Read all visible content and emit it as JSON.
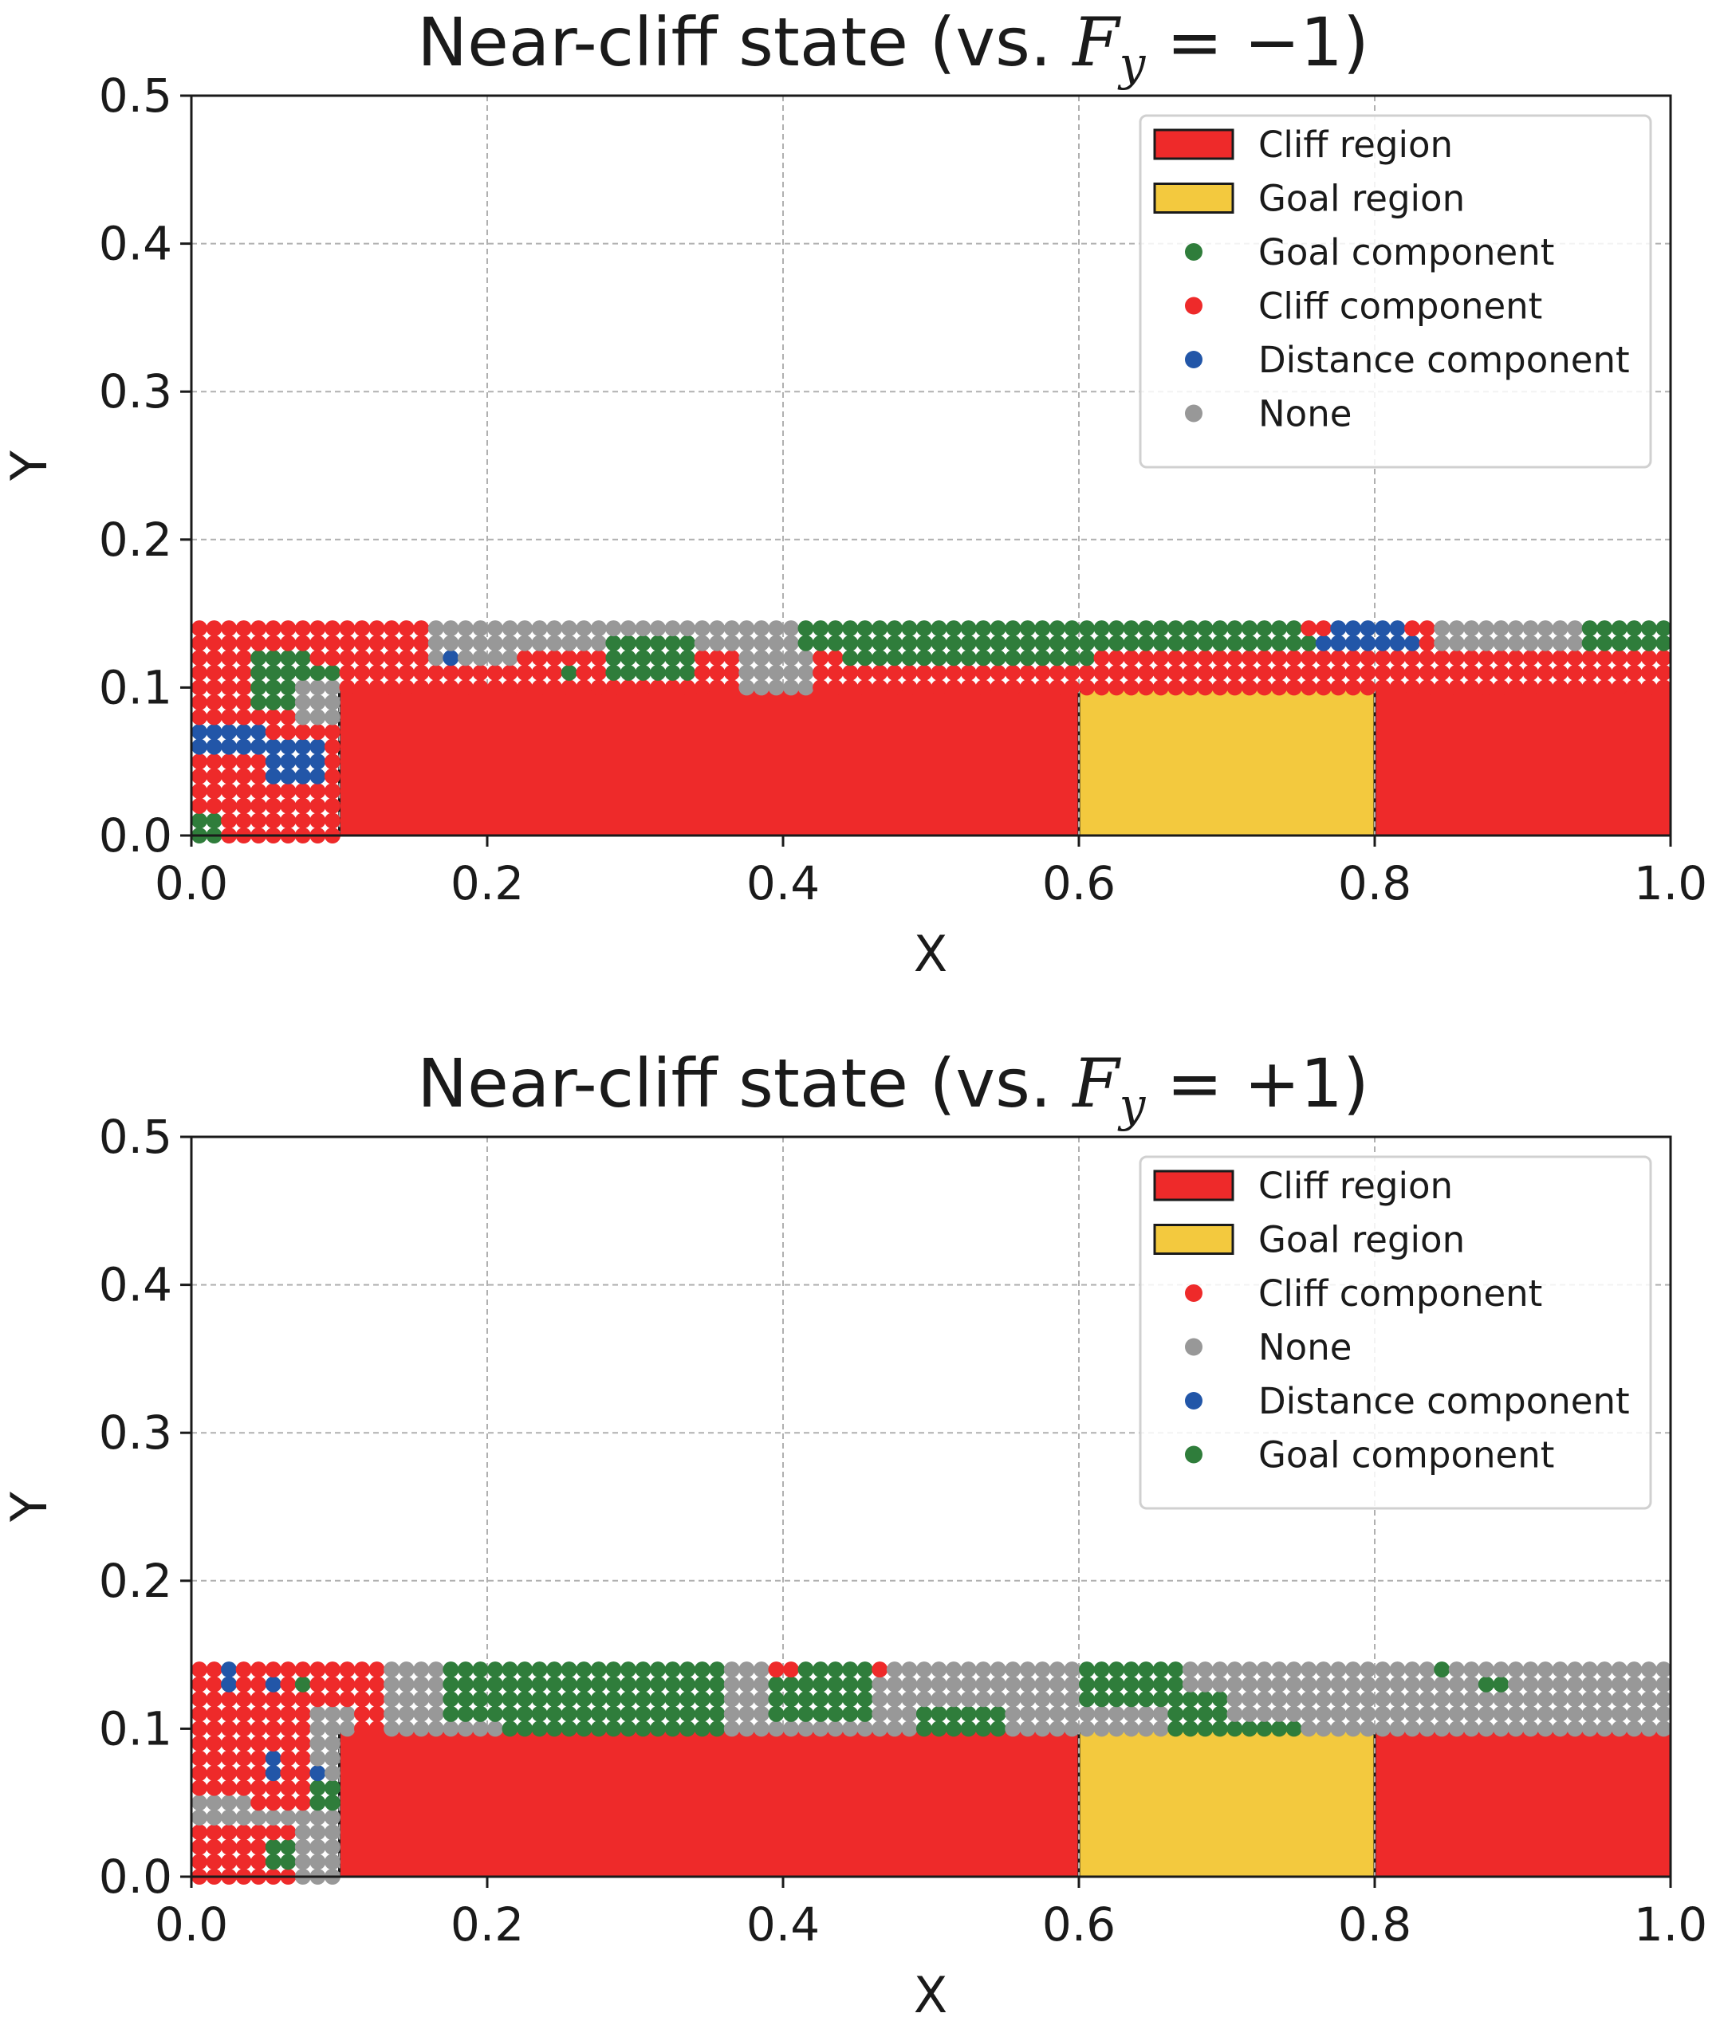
{
  "colors": {
    "cliff_region": "#ee2a2a",
    "goal_region": "#f3c93e",
    "goal_component": "#2f7d3b",
    "cliff_component": "#ee2a2a",
    "distance_component": "#2256a8",
    "none": "#989898"
  },
  "chart_data": [
    {
      "type": "scatter",
      "title": "Near-cliff state (vs. ",
      "title_math": "F",
      "title_math_sub": "y",
      "title_math_rest": " = −1)",
      "title_close": ")",
      "xlabel": "X",
      "ylabel": "Y",
      "xlim": [
        0.0,
        1.0
      ],
      "ylim": [
        0.0,
        0.5
      ],
      "xticks": [
        "0.0",
        "0.2",
        "0.4",
        "0.6",
        "0.8",
        "1.0"
      ],
      "yticks": [
        "0.0",
        "0.1",
        "0.2",
        "0.3",
        "0.4",
        "0.5"
      ],
      "grid": true,
      "legend_position": "top-right",
      "regions": [
        {
          "name": "Cliff region",
          "x": [
            0.1,
            0.6
          ],
          "y": [
            0.0,
            0.1
          ],
          "color_key": "cliff_region"
        },
        {
          "name": "Goal region",
          "x": [
            0.6,
            0.8
          ],
          "y": [
            0.0,
            0.1
          ],
          "color_key": "goal_region"
        },
        {
          "name": "Cliff region",
          "x": [
            0.8,
            1.0
          ],
          "y": [
            0.0,
            0.1
          ],
          "color_key": "cliff_region"
        }
      ],
      "legend": [
        {
          "label": "Cliff region",
          "kind": "patch",
          "color_key": "cliff_region"
        },
        {
          "label": "Goal region",
          "kind": "patch",
          "color_key": "goal_region"
        },
        {
          "label": "Goal component",
          "kind": "dot",
          "color_key": "goal_component"
        },
        {
          "label": "Cliff component",
          "kind": "dot",
          "color_key": "cliff_component"
        },
        {
          "label": "Distance component",
          "kind": "dot",
          "color_key": "distance_component"
        },
        {
          "label": "None",
          "kind": "dot",
          "color_key": "none"
        }
      ],
      "grid_points": {
        "step": 0.01,
        "x_range": [
          0.0,
          0.99
        ],
        "y_top_band": [
          0.1,
          0.14
        ],
        "left_column_x": [
          0.0,
          0.09
        ],
        "left_column_y": [
          0.0,
          0.09
        ],
        "default_top": "cliff_component",
        "default_left": "cliff_component",
        "runs": [
          {
            "cat": "none",
            "x": [
              0.16,
              0.41
            ],
            "y": [
              0.13,
              0.14
            ]
          },
          {
            "cat": "none",
            "x": [
              0.37,
              0.41
            ],
            "y": [
              0.1,
              0.12
            ]
          },
          {
            "cat": "none",
            "x": [
              0.16,
              0.21
            ],
            "y": [
              0.12,
              0.12
            ]
          },
          {
            "cat": "goal_component",
            "x": [
              0.41,
              0.75
            ],
            "y": [
              0.13,
              0.14
            ]
          },
          {
            "cat": "goal_component",
            "x": [
              0.44,
              0.6
            ],
            "y": [
              0.12,
              0.12
            ]
          },
          {
            "cat": "goal_component",
            "x": [
              0.28,
              0.33
            ],
            "y": [
              0.11,
              0.13
            ]
          },
          {
            "cat": "distance_component",
            "x": [
              0.76,
              0.81
            ],
            "y": [
              0.13,
              0.14
            ]
          },
          {
            "cat": "cliff_component",
            "x": [
              0.75,
              0.76
            ],
            "y": [
              0.14,
              0.14
            ]
          },
          {
            "cat": "cliff_component",
            "x": [
              0.82,
              0.84
            ],
            "y": [
              0.14,
              0.14
            ]
          },
          {
            "cat": "none",
            "x": [
              0.84,
              0.93
            ],
            "y": [
              0.13,
              0.14
            ]
          },
          {
            "cat": "goal_component",
            "x": [
              0.94,
              0.99
            ],
            "y": [
              0.13,
              0.14
            ]
          },
          {
            "cat": "distance_component",
            "x": [
              0.17,
              0.17
            ],
            "y": [
              0.12,
              0.12
            ]
          },
          {
            "cat": "goal_component",
            "x": [
              0.25,
              0.25
            ],
            "y": [
              0.11,
              0.11
            ]
          },
          {
            "cat": "distance_component",
            "x": [
              0.82,
              0.82
            ],
            "y": [
              0.13,
              0.13
            ]
          },
          {
            "cat": "goal_component",
            "x": [
              0.04,
              0.07
            ],
            "y": [
              0.09,
              0.12
            ]
          },
          {
            "cat": "goal_component",
            "x": [
              0.08,
              0.09
            ],
            "y": [
              0.1,
              0.11
            ]
          },
          {
            "cat": "none",
            "x": [
              0.07,
              0.09
            ],
            "y": [
              0.08,
              0.1
            ]
          },
          {
            "cat": "distance_component",
            "x": [
              0.0,
              0.04
            ],
            "y": [
              0.06,
              0.07
            ]
          },
          {
            "cat": "distance_component",
            "x": [
              0.05,
              0.08
            ],
            "y": [
              0.04,
              0.06
            ]
          },
          {
            "cat": "goal_component",
            "x": [
              0.0,
              0.01
            ],
            "y": [
              0.0,
              0.01
            ]
          }
        ]
      }
    },
    {
      "type": "scatter",
      "title": "Near-cliff state (vs. ",
      "title_math": "F",
      "title_math_sub": "y",
      "title_math_rest": " = +1)",
      "title_close": ")",
      "xlabel": "X",
      "ylabel": "Y",
      "xlim": [
        0.0,
        1.0
      ],
      "ylim": [
        0.0,
        0.5
      ],
      "xticks": [
        "0.0",
        "0.2",
        "0.4",
        "0.6",
        "0.8",
        "1.0"
      ],
      "yticks": [
        "0.0",
        "0.1",
        "0.2",
        "0.3",
        "0.4",
        "0.5"
      ],
      "grid": true,
      "legend_position": "top-right",
      "regions": [
        {
          "name": "Cliff region",
          "x": [
            0.1,
            0.6
          ],
          "y": [
            0.0,
            0.1
          ],
          "color_key": "cliff_region"
        },
        {
          "name": "Goal region",
          "x": [
            0.6,
            0.8
          ],
          "y": [
            0.0,
            0.1
          ],
          "color_key": "goal_region"
        },
        {
          "name": "Cliff region",
          "x": [
            0.8,
            1.0
          ],
          "y": [
            0.0,
            0.1
          ],
          "color_key": "cliff_region"
        }
      ],
      "legend": [
        {
          "label": "Cliff region",
          "kind": "patch",
          "color_key": "cliff_region"
        },
        {
          "label": "Goal region",
          "kind": "patch",
          "color_key": "goal_region"
        },
        {
          "label": "Cliff component",
          "kind": "dot",
          "color_key": "cliff_component"
        },
        {
          "label": "None",
          "kind": "dot",
          "color_key": "none"
        },
        {
          "label": "Distance component",
          "kind": "dot",
          "color_key": "distance_component"
        },
        {
          "label": "Goal component",
          "kind": "dot",
          "color_key": "goal_component"
        }
      ],
      "grid_points": {
        "step": 0.01,
        "x_range": [
          0.0,
          0.99
        ],
        "y_top_band": [
          0.1,
          0.14
        ],
        "left_column_x": [
          0.0,
          0.09
        ],
        "left_column_y": [
          0.0,
          0.09
        ],
        "default_top": "none",
        "default_left": "none",
        "runs": [
          {
            "cat": "cliff_component",
            "x": [
              0.0,
              0.12
            ],
            "y": [
              0.1,
              0.14
            ]
          },
          {
            "cat": "none",
            "x": [
              0.08,
              0.1
            ],
            "y": [
              0.1,
              0.11
            ]
          },
          {
            "cat": "distance_component",
            "x": [
              0.02,
              0.02
            ],
            "y": [
              0.13,
              0.14
            ]
          },
          {
            "cat": "distance_component",
            "x": [
              0.05,
              0.05
            ],
            "y": [
              0.13,
              0.13
            ]
          },
          {
            "cat": "goal_component",
            "x": [
              0.07,
              0.07
            ],
            "y": [
              0.13,
              0.13
            ]
          },
          {
            "cat": "goal_component",
            "x": [
              0.17,
              0.35
            ],
            "y": [
              0.12,
              0.14
            ]
          },
          {
            "cat": "goal_component",
            "x": [
              0.21,
              0.35
            ],
            "y": [
              0.1,
              0.11
            ]
          },
          {
            "cat": "goal_component",
            "x": [
              0.17,
              0.2
            ],
            "y": [
              0.11,
              0.11
            ]
          },
          {
            "cat": "cliff_component",
            "x": [
              0.39,
              0.4
            ],
            "y": [
              0.14,
              0.14
            ]
          },
          {
            "cat": "cliff_component",
            "x": [
              0.46,
              0.46
            ],
            "y": [
              0.14,
              0.14
            ]
          },
          {
            "cat": "cliff_component",
            "x": [
              0.45,
              0.45
            ],
            "y": [
              0.13,
              0.13
            ]
          },
          {
            "cat": "goal_component",
            "x": [
              0.39,
              0.45
            ],
            "y": [
              0.11,
              0.13
            ]
          },
          {
            "cat": "goal_component",
            "x": [
              0.41,
              0.45
            ],
            "y": [
              0.14,
              0.14
            ]
          },
          {
            "cat": "goal_component",
            "x": [
              0.49,
              0.54
            ],
            "y": [
              0.1,
              0.11
            ]
          },
          {
            "cat": "goal_component",
            "x": [
              0.6,
              0.66
            ],
            "y": [
              0.12,
              0.14
            ]
          },
          {
            "cat": "goal_component",
            "x": [
              0.66,
              0.69
            ],
            "y": [
              0.11,
              0.12
            ]
          },
          {
            "cat": "goal_component",
            "x": [
              0.66,
              0.74
            ],
            "y": [
              0.1,
              0.1
            ]
          },
          {
            "cat": "goal_component",
            "x": [
              0.84,
              0.84
            ],
            "y": [
              0.14,
              0.14
            ]
          },
          {
            "cat": "goal_component",
            "x": [
              0.87,
              0.88
            ],
            "y": [
              0.13,
              0.13
            ]
          },
          {
            "cat": "cliff_component",
            "x": [
              0.0,
              0.03
            ],
            "y": [
              0.06,
              0.09
            ]
          },
          {
            "cat": "cliff_component",
            "x": [
              0.04,
              0.07
            ],
            "y": [
              0.05,
              0.09
            ]
          },
          {
            "cat": "distance_component",
            "x": [
              0.05,
              0.05
            ],
            "y": [
              0.07,
              0.08
            ]
          },
          {
            "cat": "distance_component",
            "x": [
              0.08,
              0.08
            ],
            "y": [
              0.07,
              0.07
            ]
          },
          {
            "cat": "goal_component",
            "x": [
              0.08,
              0.09
            ],
            "y": [
              0.05,
              0.06
            ]
          },
          {
            "cat": "cliff_component",
            "x": [
              0.0,
              0.06
            ],
            "y": [
              0.0,
              0.03
            ]
          },
          {
            "cat": "goal_component",
            "x": [
              0.05,
              0.06
            ],
            "y": [
              0.01,
              0.02
            ]
          }
        ]
      }
    }
  ]
}
